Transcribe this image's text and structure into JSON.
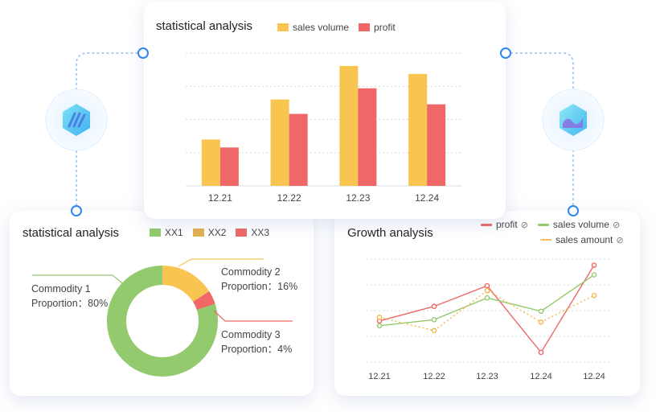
{
  "colors": {
    "yellow": "#f8c551",
    "red": "#ef6766",
    "green": "#93ca6d",
    "gold": "#e3b04f",
    "dotted": "#f2b94a",
    "accent": "#2e86f0"
  },
  "top_card": {
    "title": "statistical analysis",
    "legend": [
      {
        "label": "sales volume",
        "color": "#f8c551"
      },
      {
        "label": "profit",
        "color": "#ef6766"
      }
    ]
  },
  "pie_card": {
    "title": "statistical analysis",
    "legend": [
      {
        "label": "XX1",
        "color": "#93ca6d"
      },
      {
        "label": "XX2",
        "color": "#e3b04f"
      },
      {
        "label": "XX3",
        "color": "#ef6766"
      }
    ],
    "labels": [
      {
        "name": "Commodity 1",
        "proportion": "Proportion：80%"
      },
      {
        "name": "Commodity 2",
        "proportion": "Proportion：16%"
      },
      {
        "name": "Commodity 3",
        "proportion": "Proportion：4%"
      }
    ]
  },
  "line_card": {
    "title": "Growth analysis",
    "legend": [
      {
        "label": "profit",
        "color": "#ef6766",
        "style": "solid"
      },
      {
        "label": "sales volume",
        "color": "#93ca6d",
        "style": "solid"
      },
      {
        "label": "sales amount",
        "color": "#f2b94a",
        "style": "dotted"
      }
    ]
  },
  "icons": {
    "left_badge": "hexagon-stripes-icon",
    "right_badge": "hexagon-wave-icon",
    "legend_toggle": "eye-off-icon"
  },
  "chart_data": [
    {
      "type": "bar",
      "title": "statistical analysis",
      "categories": [
        "12.21",
        "12.22",
        "12.23",
        "12.24"
      ],
      "series": [
        {
          "name": "sales volume",
          "color": "#f8c551",
          "values": [
            29,
            54,
            75,
            70
          ]
        },
        {
          "name": "profit",
          "color": "#ef6766",
          "values": [
            24,
            45,
            61,
            51
          ]
        }
      ],
      "ylim": [
        0,
        83
      ],
      "grid": true,
      "legend": "top"
    },
    {
      "type": "pie",
      "title": "statistical analysis",
      "donut": true,
      "slices": [
        {
          "name": "Commodity 1",
          "legend": "XX1",
          "value": 80,
          "color": "#93ca6d"
        },
        {
          "name": "Commodity 2",
          "legend": "XX2",
          "value": 16,
          "color": "#f8c551"
        },
        {
          "name": "Commodity 3",
          "legend": "XX3",
          "value": 4,
          "color": "#ef6766"
        }
      ],
      "legend": "top"
    },
    {
      "type": "line",
      "title": "Growth analysis",
      "categories": [
        "12.21",
        "12.22",
        "12.23",
        "12.24",
        "12.24"
      ],
      "series": [
        {
          "name": "profit",
          "color": "#ef6766",
          "style": "solid",
          "values": [
            34,
            46,
            63,
            8,
            80
          ]
        },
        {
          "name": "sales volume",
          "color": "#93ca6d",
          "style": "solid",
          "values": [
            30,
            35,
            53,
            42,
            72
          ]
        },
        {
          "name": "sales amount",
          "color": "#f2b94a",
          "style": "dotted",
          "values": [
            37,
            26,
            59,
            33,
            55
          ]
        }
      ],
      "ylim": [
        0,
        85
      ],
      "grid": true,
      "legend": "top-right"
    }
  ]
}
